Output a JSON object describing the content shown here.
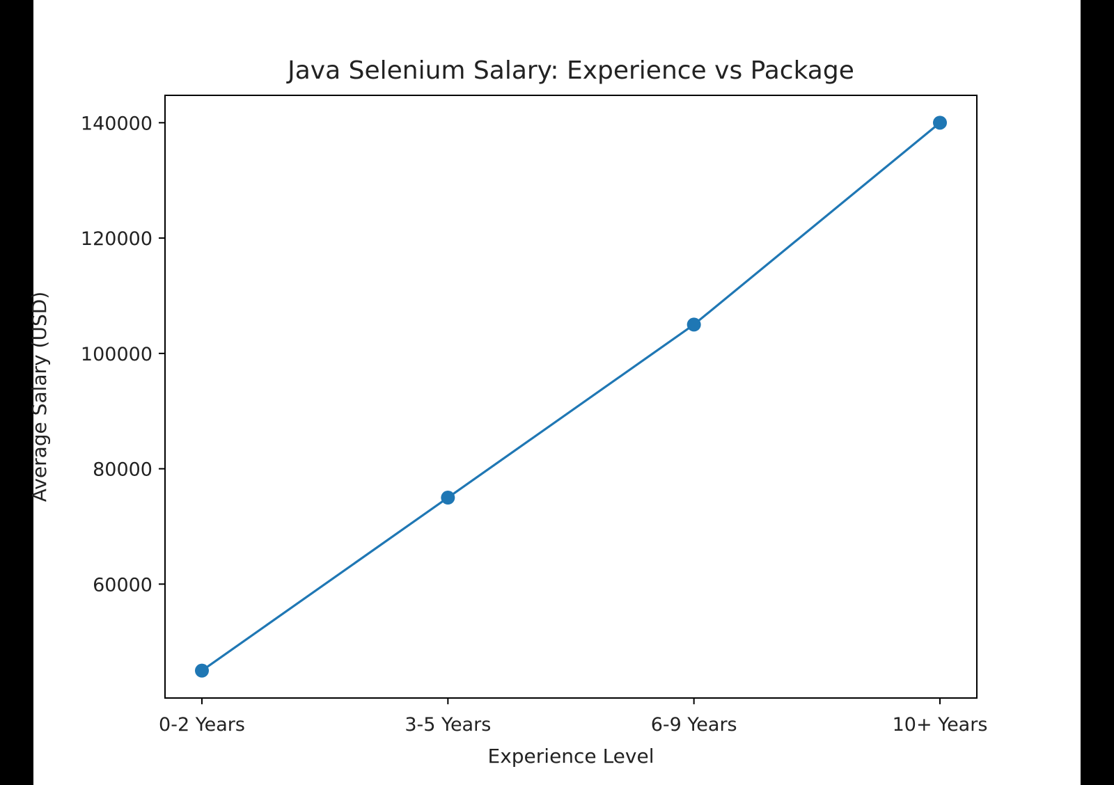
{
  "chart_data": {
    "type": "line",
    "title": "Java Selenium Salary: Experience vs Package",
    "xlabel": "Experience Level",
    "ylabel": "Average Salary (USD)",
    "categories": [
      "0-2 Years",
      "3-5 Years",
      "6-9 Years",
      "10+ Years"
    ],
    "values": [
      45000,
      75000,
      105000,
      140000
    ],
    "yticks": [
      60000,
      80000,
      100000,
      120000,
      140000
    ],
    "ylim": [
      40250,
      144750
    ],
    "marker": "circle",
    "grid": false,
    "color": "#1f77b4"
  }
}
